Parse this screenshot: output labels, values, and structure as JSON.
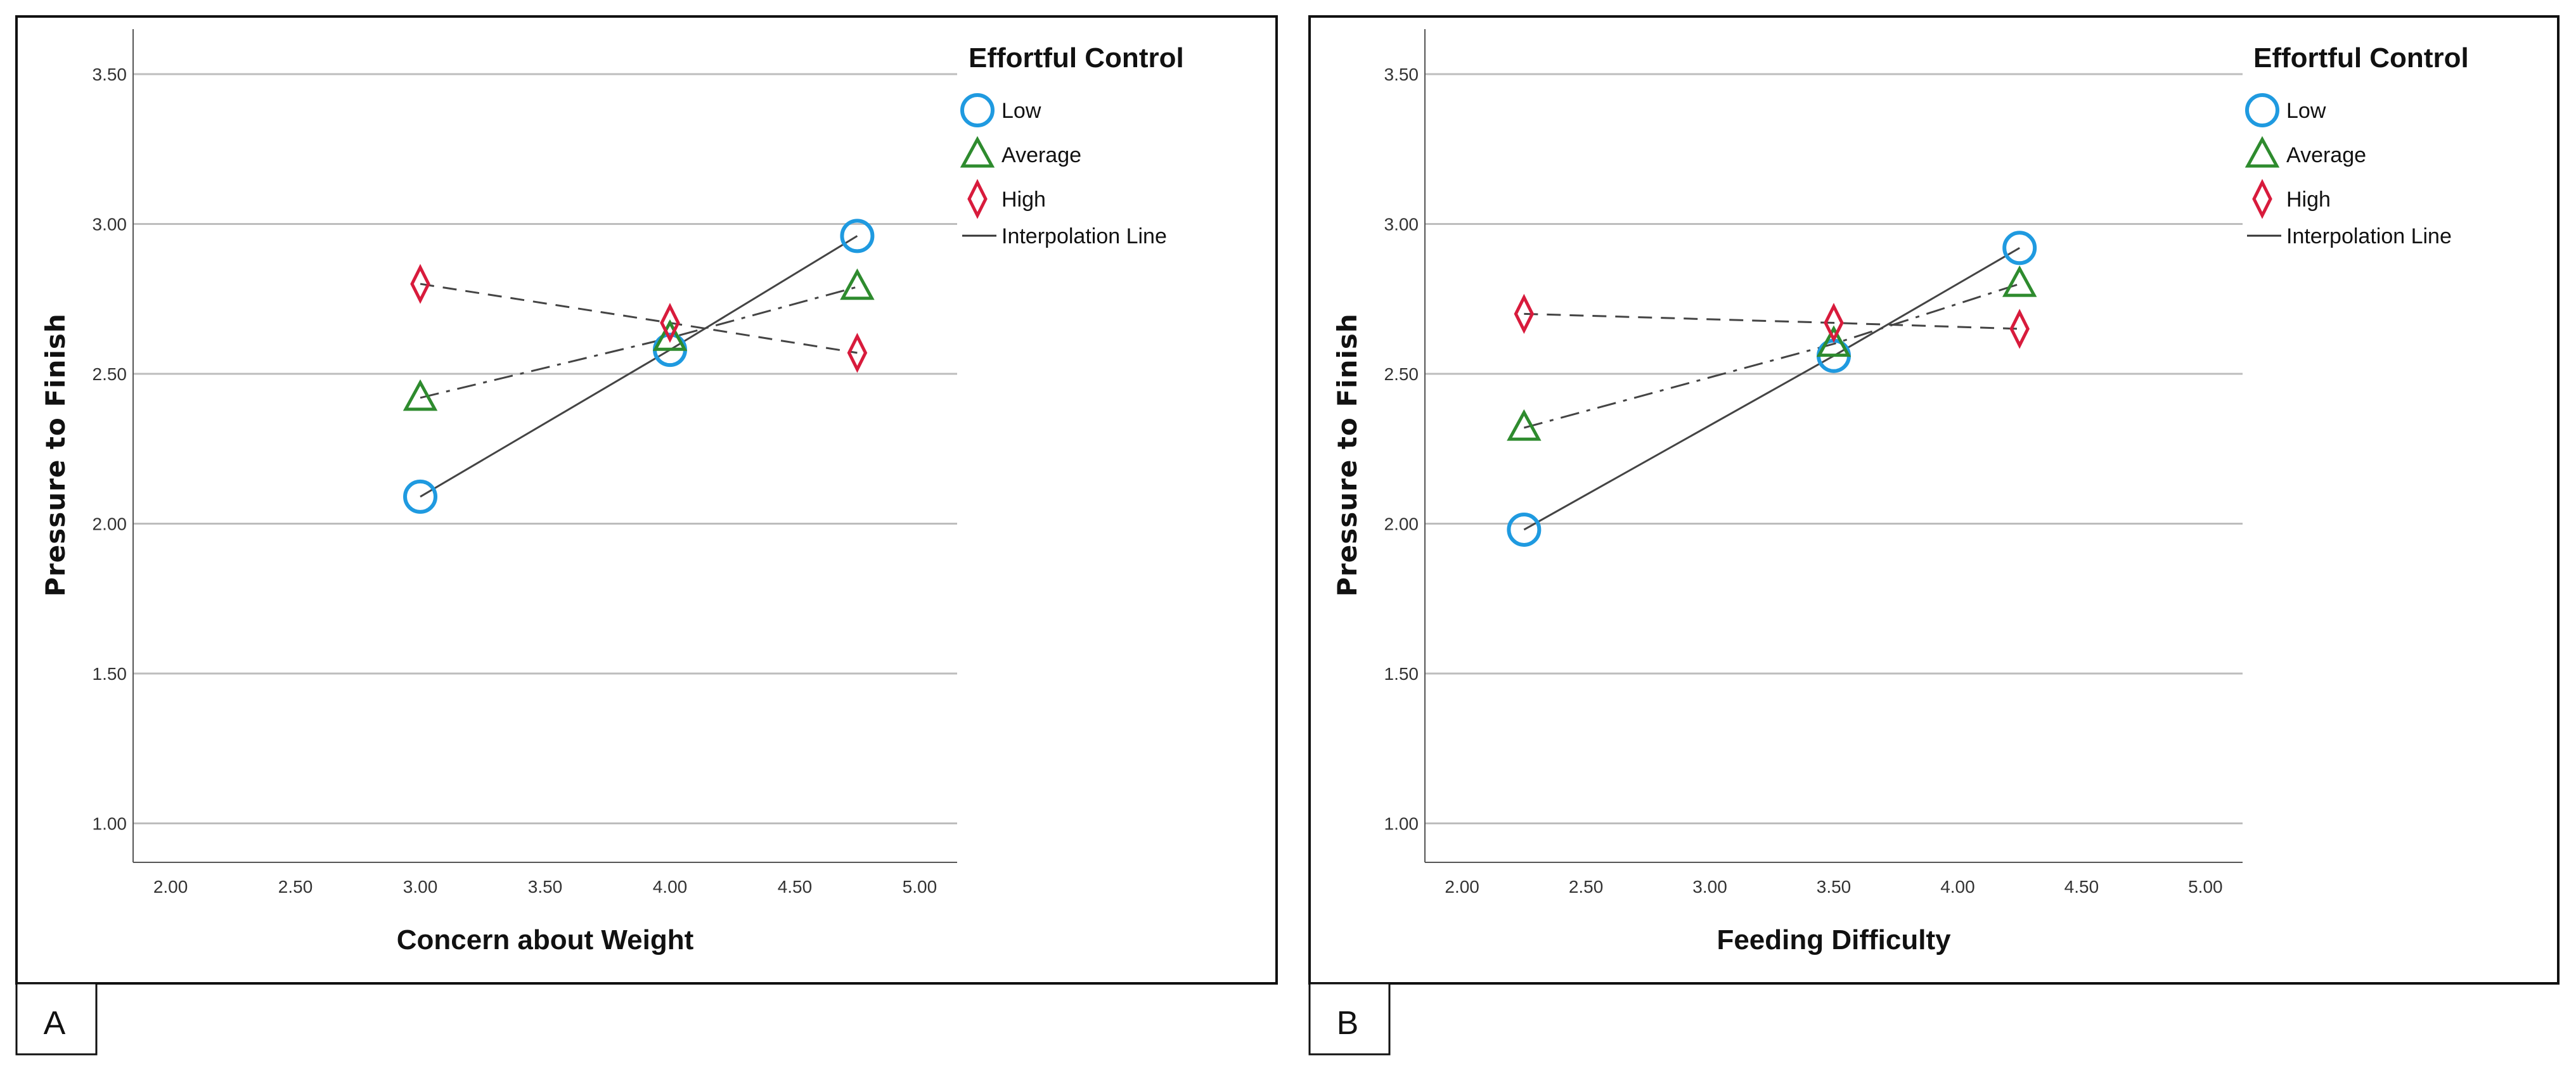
{
  "chart_data": [
    {
      "type": "line",
      "panel_label": "A",
      "xlabel": "Concern about Weight",
      "ylabel": "Pressure to Finish",
      "xlim": [
        1.85,
        5.15
      ],
      "ylim": [
        0.87,
        3.65
      ],
      "x_ticks": [
        "2.00",
        "2.50",
        "3.00",
        "3.50",
        "4.00",
        "4.50",
        "5.00"
      ],
      "y_ticks": [
        "1.00",
        "1.50",
        "2.00",
        "2.50",
        "3.00",
        "3.50"
      ],
      "legend": {
        "title": "Effortful Control",
        "interpolation_label": "Interpolation Line",
        "placement": "top-right"
      },
      "series": [
        {
          "name": "Low",
          "marker": "circle",
          "color": "#1f9ae0",
          "line_style": "solid",
          "x": [
            3.0,
            4.0,
            4.75
          ],
          "y": [
            2.09,
            2.58,
            2.96
          ]
        },
        {
          "name": "Average",
          "marker": "triangle",
          "color": "#2e8b2e",
          "line_style": "dashdot",
          "x": [
            3.0,
            4.0,
            4.75
          ],
          "y": [
            2.42,
            2.62,
            2.79
          ]
        },
        {
          "name": "High",
          "marker": "diamond",
          "color": "#d81b3c",
          "line_style": "dashed",
          "x": [
            3.0,
            4.0,
            4.75
          ],
          "y": [
            2.8,
            2.67,
            2.57
          ]
        }
      ]
    },
    {
      "type": "line",
      "panel_label": "B",
      "xlabel": "Feeding Difficulty",
      "ylabel": "Pressure to Finish",
      "xlim": [
        1.85,
        5.15
      ],
      "ylim": [
        0.87,
        3.65
      ],
      "x_ticks": [
        "2.00",
        "2.50",
        "3.00",
        "3.50",
        "4.00",
        "4.50",
        "5.00"
      ],
      "y_ticks": [
        "1.00",
        "1.50",
        "2.00",
        "2.50",
        "3.00",
        "3.50"
      ],
      "legend": {
        "title": "Effortful Control",
        "interpolation_label": "Interpolation Line",
        "placement": "top-right"
      },
      "series": [
        {
          "name": "Low",
          "marker": "circle",
          "color": "#1f9ae0",
          "line_style": "solid",
          "x": [
            2.25,
            3.5,
            4.25
          ],
          "y": [
            1.98,
            2.56,
            2.92
          ]
        },
        {
          "name": "Average",
          "marker": "triangle",
          "color": "#2e8b2e",
          "line_style": "dashdot",
          "x": [
            2.25,
            3.5,
            4.25
          ],
          "y": [
            2.32,
            2.6,
            2.8
          ]
        },
        {
          "name": "High",
          "marker": "diamond",
          "color": "#d81b3c",
          "line_style": "dashed",
          "x": [
            2.25,
            3.5,
            4.25
          ],
          "y": [
            2.7,
            2.67,
            2.65
          ]
        }
      ]
    }
  ]
}
